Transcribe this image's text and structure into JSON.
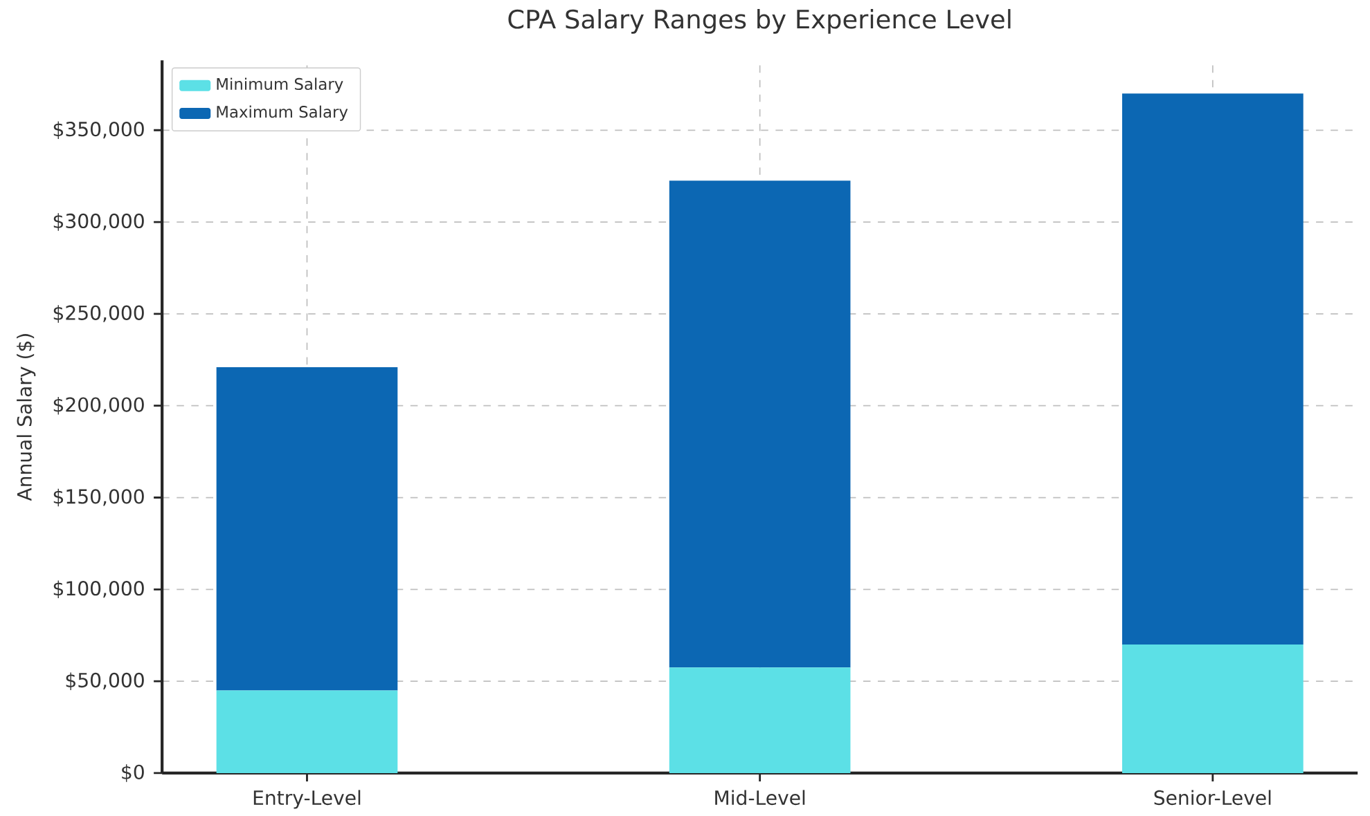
{
  "chart_data": {
    "type": "bar",
    "stacked": true,
    "title": "CPA Salary Ranges by Experience Level",
    "ylabel": "Annual Salary ($)",
    "categories": [
      "Entry-Level",
      "Mid-Level",
      "Senior-Level"
    ],
    "series": [
      {
        "name": "Minimum Salary",
        "color": "#5ce0e6",
        "values": [
          45000,
          57500,
          70000
        ]
      },
      {
        "name": "Maximum Salary",
        "color": "#0c67b3",
        "values": [
          176000,
          265000,
          300000
        ]
      }
    ],
    "ylim": [
      0,
      388000
    ],
    "yticks": [
      {
        "value": 0,
        "label": "$0"
      },
      {
        "value": 50000,
        "label": "$50,000"
      },
      {
        "value": 100000,
        "label": "$100,000"
      },
      {
        "value": 150000,
        "label": "$150,000"
      },
      {
        "value": 200000,
        "label": "$200,000"
      },
      {
        "value": 250000,
        "label": "$250,000"
      },
      {
        "value": 300000,
        "label": "$300,000"
      },
      {
        "value": 350000,
        "label": "$350,000"
      }
    ],
    "grid": true,
    "legend": "top left"
  }
}
